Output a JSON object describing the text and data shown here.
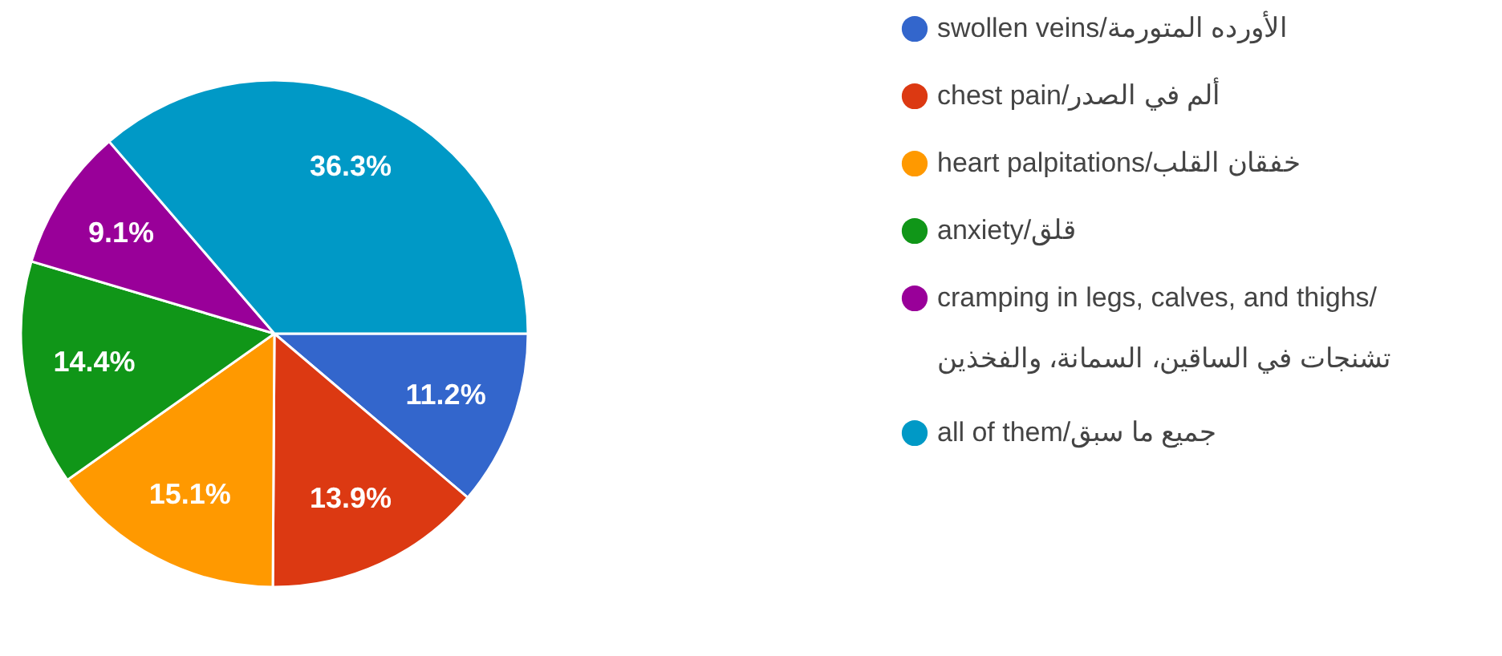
{
  "chart_data": {
    "type": "pie",
    "categories": [
      "swollen veins/الأورده المتورمة",
      "chest pain/ألم في الصدر",
      "heart palpitations/خفقان القلب",
      "anxiety/قلق",
      "cramping in legs, calves, and thighs/تشنجات في الساقين، السمانة، والفخذين",
      "all of them/جميع ما سبق"
    ],
    "values": [
      11.2,
      13.9,
      15.1,
      14.4,
      9.1,
      36.3
    ],
    "value_labels": [
      "11.2%",
      "13.9%",
      "15.1%",
      "14.4%",
      "9.1%",
      "36.3%"
    ],
    "colors": [
      "#3366cc",
      "#dc3912",
      "#ff9900",
      "#109618",
      "#990099",
      "#0099c6"
    ],
    "legend": "right"
  }
}
